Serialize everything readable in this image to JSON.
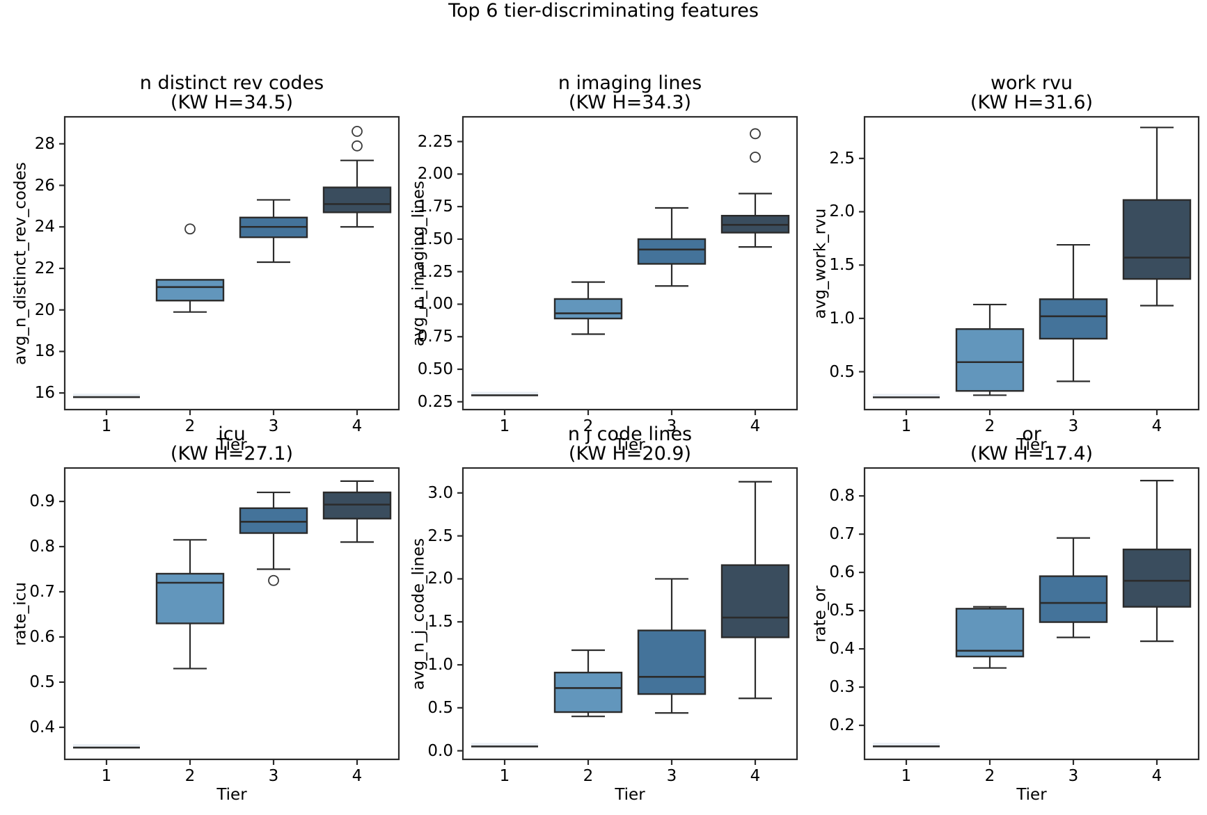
{
  "figure": {
    "suptitle": "Top 6 tier-discriminating features",
    "xlabel": "Tier",
    "x_ticks": [
      "1",
      "2",
      "3",
      "4"
    ],
    "colors": {
      "background": "#ffffff",
      "line": "#2b2b2b",
      "text": "#000000",
      "tier_fills": [
        "#e9eef4",
        "#6296bc",
        "#44739a",
        "#3a4d5e"
      ]
    }
  },
  "chart_data": [
    {
      "type": "box",
      "title": "n distinct rev codes",
      "subtitle": "(KW H=34.5)",
      "kw_h": 34.5,
      "xlabel": "Tier",
      "ylabel": "avg_n_distinct_rev_codes",
      "ylim": [
        15.2,
        29.3
      ],
      "yticks": [
        16,
        18,
        20,
        22,
        24,
        26,
        28
      ],
      "ytick_labels": [
        "16",
        "18",
        "20",
        "22",
        "24",
        "26",
        "28"
      ],
      "categories": [
        "1",
        "2",
        "3",
        "4"
      ],
      "boxes": [
        {
          "tier": "1",
          "lo": 15.8,
          "q1": 15.8,
          "med": 15.8,
          "q3": 15.8,
          "hi": 15.8,
          "outliers": []
        },
        {
          "tier": "2",
          "lo": 19.9,
          "q1": 20.45,
          "med": 21.1,
          "q3": 21.45,
          "hi": 21.45,
          "outliers": [
            23.9
          ]
        },
        {
          "tier": "3",
          "lo": 22.3,
          "q1": 23.5,
          "med": 24.0,
          "q3": 24.45,
          "hi": 25.3,
          "outliers": []
        },
        {
          "tier": "4",
          "lo": 24.0,
          "q1": 24.7,
          "med": 25.1,
          "q3": 25.9,
          "hi": 27.2,
          "outliers": [
            27.9,
            28.6
          ]
        }
      ]
    },
    {
      "type": "box",
      "title": "n imaging lines",
      "subtitle": "(KW H=34.3)",
      "kw_h": 34.3,
      "xlabel": "Tier",
      "ylabel": "avg_n_imaging_lines",
      "ylim": [
        0.19,
        2.44
      ],
      "yticks": [
        0.25,
        0.5,
        0.75,
        1.0,
        1.25,
        1.5,
        1.75,
        2.0,
        2.25
      ],
      "ytick_labels": [
        "0.25",
        "0.50",
        "0.75",
        "1.00",
        "1.25",
        "1.50",
        "1.75",
        "2.00",
        "2.25"
      ],
      "categories": [
        "1",
        "2",
        "3",
        "4"
      ],
      "boxes": [
        {
          "tier": "1",
          "lo": 0.3,
          "q1": 0.3,
          "med": 0.3,
          "q3": 0.3,
          "hi": 0.3,
          "outliers": []
        },
        {
          "tier": "2",
          "lo": 0.77,
          "q1": 0.89,
          "med": 0.93,
          "q3": 1.04,
          "hi": 1.17,
          "outliers": []
        },
        {
          "tier": "3",
          "lo": 1.14,
          "q1": 1.31,
          "med": 1.42,
          "q3": 1.5,
          "hi": 1.74,
          "outliers": []
        },
        {
          "tier": "4",
          "lo": 1.44,
          "q1": 1.55,
          "med": 1.61,
          "q3": 1.68,
          "hi": 1.85,
          "outliers": [
            2.13,
            2.31
          ]
        }
      ]
    },
    {
      "type": "box",
      "title": "work rvu",
      "subtitle": "(KW H=31.6)",
      "kw_h": 31.6,
      "xlabel": "Tier",
      "ylabel": "avg_work_rvu",
      "ylim": [
        0.145,
        2.89
      ],
      "yticks": [
        0.5,
        1.0,
        1.5,
        2.0,
        2.5
      ],
      "ytick_labels": [
        "0.5",
        "1.0",
        "1.5",
        "2.0",
        "2.5"
      ],
      "categories": [
        "1",
        "2",
        "3",
        "4"
      ],
      "boxes": [
        {
          "tier": "1",
          "lo": 0.26,
          "q1": 0.26,
          "med": 0.26,
          "q3": 0.26,
          "hi": 0.26,
          "outliers": []
        },
        {
          "tier": "2",
          "lo": 0.28,
          "q1": 0.32,
          "med": 0.59,
          "q3": 0.9,
          "hi": 1.13,
          "outliers": []
        },
        {
          "tier": "3",
          "lo": 0.41,
          "q1": 0.81,
          "med": 1.02,
          "q3": 1.18,
          "hi": 1.69,
          "outliers": []
        },
        {
          "tier": "4",
          "lo": 1.12,
          "q1": 1.37,
          "med": 1.57,
          "q3": 2.11,
          "hi": 2.79,
          "outliers": []
        }
      ]
    },
    {
      "type": "box",
      "title": "icu",
      "subtitle": "(KW H=27.1)",
      "kw_h": 27.1,
      "xlabel": "Tier",
      "ylabel": "rate_icu",
      "ylim": [
        0.329,
        0.974
      ],
      "yticks": [
        0.4,
        0.5,
        0.6,
        0.7,
        0.8,
        0.9
      ],
      "ytick_labels": [
        "0.4",
        "0.5",
        "0.6",
        "0.7",
        "0.8",
        "0.9"
      ],
      "categories": [
        "1",
        "2",
        "3",
        "4"
      ],
      "boxes": [
        {
          "tier": "1",
          "lo": 0.355,
          "q1": 0.355,
          "med": 0.355,
          "q3": 0.355,
          "hi": 0.355,
          "outliers": []
        },
        {
          "tier": "2",
          "lo": 0.53,
          "q1": 0.63,
          "med": 0.72,
          "q3": 0.74,
          "hi": 0.815,
          "outliers": []
        },
        {
          "tier": "3",
          "lo": 0.75,
          "q1": 0.83,
          "med": 0.855,
          "q3": 0.885,
          "hi": 0.92,
          "outliers": [
            0.725
          ]
        },
        {
          "tier": "4",
          "lo": 0.81,
          "q1": 0.862,
          "med": 0.893,
          "q3": 0.92,
          "hi": 0.945,
          "outliers": []
        }
      ]
    },
    {
      "type": "box",
      "title": "n j code lines",
      "subtitle": "(KW H=20.9)",
      "kw_h": 20.9,
      "xlabel": "Tier",
      "ylabel": "avg_n_j_code_lines",
      "ylim": [
        -0.1,
        3.29
      ],
      "yticks": [
        0.0,
        0.5,
        1.0,
        1.5,
        2.0,
        2.5,
        3.0
      ],
      "ytick_labels": [
        "0.0",
        "0.5",
        "1.0",
        "1.5",
        "2.0",
        "2.5",
        "3.0"
      ],
      "categories": [
        "1",
        "2",
        "3",
        "4"
      ],
      "boxes": [
        {
          "tier": "1",
          "lo": 0.05,
          "q1": 0.05,
          "med": 0.05,
          "q3": 0.05,
          "hi": 0.05,
          "outliers": []
        },
        {
          "tier": "2",
          "lo": 0.4,
          "q1": 0.45,
          "med": 0.73,
          "q3": 0.91,
          "hi": 1.17,
          "outliers": []
        },
        {
          "tier": "3",
          "lo": 0.44,
          "q1": 0.66,
          "med": 0.86,
          "q3": 1.4,
          "hi": 2.0,
          "outliers": []
        },
        {
          "tier": "4",
          "lo": 0.61,
          "q1": 1.32,
          "med": 1.55,
          "q3": 2.16,
          "hi": 3.13,
          "outliers": []
        }
      ]
    },
    {
      "type": "box",
      "title": "or",
      "subtitle": "(KW H=17.4)",
      "kw_h": 17.4,
      "xlabel": "Tier",
      "ylabel": "rate_or",
      "ylim": [
        0.111,
        0.873
      ],
      "yticks": [
        0.2,
        0.3,
        0.4,
        0.5,
        0.6,
        0.7,
        0.8
      ],
      "ytick_labels": [
        "0.2",
        "0.3",
        "0.4",
        "0.5",
        "0.6",
        "0.7",
        "0.8"
      ],
      "categories": [
        "1",
        "2",
        "3",
        "4"
      ],
      "boxes": [
        {
          "tier": "1",
          "lo": 0.145,
          "q1": 0.145,
          "med": 0.145,
          "q3": 0.145,
          "hi": 0.145,
          "outliers": []
        },
        {
          "tier": "2",
          "lo": 0.35,
          "q1": 0.38,
          "med": 0.395,
          "q3": 0.505,
          "hi": 0.51,
          "outliers": []
        },
        {
          "tier": "3",
          "lo": 0.43,
          "q1": 0.47,
          "med": 0.52,
          "q3": 0.59,
          "hi": 0.69,
          "outliers": []
        },
        {
          "tier": "4",
          "lo": 0.42,
          "q1": 0.51,
          "med": 0.578,
          "q3": 0.66,
          "hi": 0.84,
          "outliers": []
        }
      ]
    }
  ]
}
